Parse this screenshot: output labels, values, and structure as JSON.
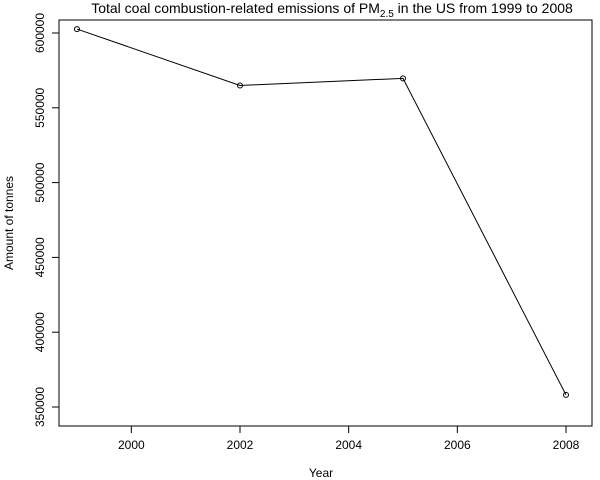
{
  "chart_data": {
    "type": "line",
    "title": {
      "prefix": "Total coal combustion-related emissions of PM",
      "subscript": "2.5",
      "suffix": " in the US from 1999 to 2008"
    },
    "xlabel": "Year",
    "ylabel": "Amount of tonnes",
    "x": [
      1999,
      2002,
      2005,
      2008
    ],
    "values": [
      602624,
      564940,
      569655,
      358084
    ],
    "xlim": [
      1999,
      2008
    ],
    "ylim": [
      350000,
      600000
    ],
    "x_ticks": [
      2000,
      2002,
      2004,
      2006,
      2008
    ],
    "y_ticks": [
      350000,
      400000,
      450000,
      500000,
      550000,
      600000
    ],
    "x_tick_labels": [
      "2000",
      "2002",
      "2004",
      "2006",
      "2008"
    ],
    "y_tick_labels": [
      "350000",
      "400000",
      "450000",
      "500000",
      "550000",
      "600000"
    ],
    "grid": false,
    "line_color": "#000000",
    "marker": "open-circle"
  }
}
